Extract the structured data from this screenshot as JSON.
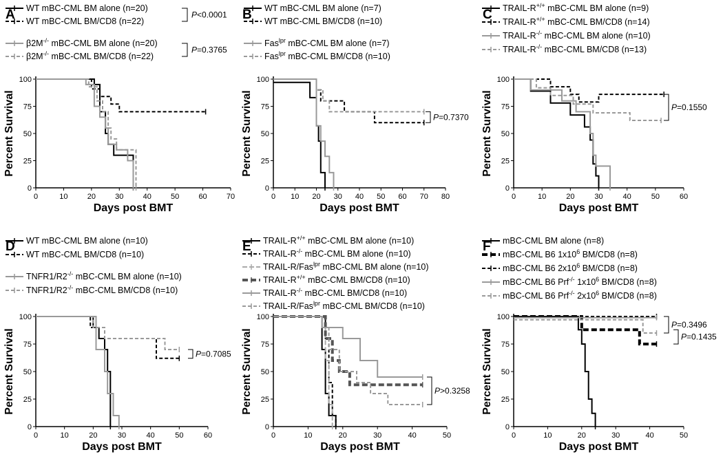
{
  "chart_data": [
    {
      "type": "line",
      "panel": "A",
      "xlabel": "Days post BMT",
      "ylabel": "Percent Survival",
      "xlim": [
        0,
        70
      ],
      "ylim": [
        0,
        100
      ],
      "xticks": [
        0,
        10,
        20,
        30,
        40,
        50,
        60,
        70
      ],
      "yticks": [
        0,
        25,
        50,
        75,
        100
      ],
      "series": [
        {
          "name": "WT mBC-CML BM alone (n=20)",
          "color": "#000000",
          "dash": "solid",
          "x": [
            0,
            21,
            23,
            25,
            26,
            28,
            35
          ],
          "y": [
            100,
            95,
            70,
            50,
            40,
            30,
            0
          ]
        },
        {
          "name": "WT mBC-CML BM/CD8 (n=22)",
          "color": "#000000",
          "dash": "dashed",
          "x": [
            0,
            20,
            23,
            27,
            30,
            61
          ],
          "y": [
            100,
            91,
            84,
            77,
            70,
            70
          ]
        },
        {
          "name": "β2M -/- mBC-CML BM alone (n=20)",
          "color": "#999999",
          "dash": "solid",
          "x": [
            0,
            18,
            21,
            23,
            25,
            26,
            29,
            33,
            35
          ],
          "y": [
            100,
            95,
            75,
            65,
            55,
            40,
            35,
            25,
            0
          ]
        },
        {
          "name": "β2M -/- mBC-CML BM/CD8 (n=22)",
          "color": "#999999",
          "dash": "dashed",
          "x": [
            0,
            19,
            22,
            24,
            26,
            27,
            29,
            36
          ],
          "y": [
            100,
            93,
            80,
            70,
            55,
            45,
            35,
            0
          ]
        }
      ],
      "pvalues": [
        {
          "label": "P",
          "value": "<0.0001"
        },
        {
          "label": "P",
          "value": "=0.3765"
        }
      ]
    },
    {
      "type": "line",
      "panel": "B",
      "xlabel": "Days post BMT",
      "ylabel": "Percent Survival",
      "xlim": [
        0,
        80
      ],
      "ylim": [
        0,
        100
      ],
      "xticks": [
        0,
        10,
        20,
        30,
        40,
        50,
        60,
        70,
        80
      ],
      "yticks": [
        0,
        25,
        50,
        75,
        100
      ],
      "series": [
        {
          "name": "WT mBC-CML BM alone (n=7)",
          "color": "#000000",
          "dash": "solid",
          "x": [
            0,
            17,
            20,
            21,
            22,
            24
          ],
          "y": [
            97,
            83,
            57,
            43,
            14,
            0
          ]
        },
        {
          "name": "WT mBC-CML BM/CD8 (n=10)",
          "color": "#000000",
          "dash": "dashed",
          "x": [
            0,
            20,
            22,
            29,
            33,
            47,
            70
          ],
          "y": [
            100,
            90,
            80,
            80,
            70,
            60,
            60
          ]
        },
        {
          "name": "Fas lpr mBC-CML BM alone (n=7)",
          "color": "#999999",
          "dash": "solid",
          "x": [
            0,
            20,
            22,
            24,
            26,
            28
          ],
          "y": [
            100,
            57,
            43,
            29,
            14,
            0
          ]
        },
        {
          "name": "Fas lpr mBC-CML BM/CD8 (n=10)",
          "color": "#999999",
          "dash": "dashed",
          "x": [
            0,
            20,
            23,
            26,
            70
          ],
          "y": [
            100,
            90,
            80,
            70,
            70
          ]
        }
      ],
      "pvalues": [
        {
          "label": "P",
          "value": "=0.7370"
        }
      ]
    },
    {
      "type": "line",
      "panel": "C",
      "xlabel": "Days post BMT",
      "ylabel": "Percent Survival",
      "xlim": [
        0,
        60
      ],
      "ylim": [
        0,
        100
      ],
      "xticks": [
        0,
        10,
        20,
        30,
        40,
        50,
        60
      ],
      "yticks": [
        0,
        25,
        50,
        75,
        100
      ],
      "series": [
        {
          "name": "TRAIL-R +/+ mBC-CML BM alone (n=9)",
          "color": "#000000",
          "dash": "solid",
          "x": [
            0,
            6,
            13,
            20,
            25,
            27,
            28,
            29,
            30
          ],
          "y": [
            100,
            89,
            78,
            67,
            56,
            44,
            22,
            11,
            0
          ]
        },
        {
          "name": "TRAIL-R +/+ mBC-CML BM/CD8 (n=14)",
          "color": "#000000",
          "dash": "dashed",
          "x": [
            0,
            13,
            20,
            23,
            30,
            53
          ],
          "y": [
            100,
            93,
            86,
            79,
            86,
            86
          ]
        },
        {
          "name": "TRAIL-R -/- mBC-CML BM alone (n=10)",
          "color": "#999999",
          "dash": "solid",
          "x": [
            0,
            6,
            15,
            17,
            22,
            27,
            28,
            29,
            31,
            34
          ],
          "y": [
            100,
            90,
            90,
            80,
            70,
            50,
            30,
            20,
            20,
            0
          ]
        },
        {
          "name": "TRAIL-R -/- mBC-CML BM/CD8 (n=13)",
          "color": "#999999",
          "dash": "dashed",
          "x": [
            0,
            8,
            13,
            21,
            28,
            35,
            41,
            52
          ],
          "y": [
            100,
            92,
            85,
            77,
            69,
            69,
            62,
            62
          ]
        }
      ],
      "pvalues": [
        {
          "label": "P",
          "value": "=0.1550"
        }
      ]
    },
    {
      "type": "line",
      "panel": "D",
      "xlabel": "Days post BMT",
      "ylabel": "Percent Survival",
      "xlim": [
        0,
        60
      ],
      "ylim": [
        0,
        100
      ],
      "xticks": [
        0,
        10,
        20,
        30,
        40,
        50,
        60
      ],
      "yticks": [
        0,
        25,
        50,
        75,
        100
      ],
      "series": [
        {
          "name": "WT mBC-CML BM alone (n=10)",
          "color": "#000000",
          "dash": "solid",
          "x": [
            0,
            20,
            22,
            24,
            25,
            26
          ],
          "y": [
            100,
            90,
            80,
            70,
            50,
            0
          ]
        },
        {
          "name": "WT mBC-CML BM/CD8 (n=10)",
          "color": "#000000",
          "dash": "dashed",
          "x": [
            0,
            19,
            21,
            24,
            42,
            50
          ],
          "y": [
            100,
            90,
            90,
            80,
            62,
            62
          ]
        },
        {
          "name": "TNFR1/R2 -/- mBC-CML BM alone (n=10)",
          "color": "#999999",
          "dash": "solid",
          "x": [
            0,
            21,
            24,
            25,
            27,
            29
          ],
          "y": [
            100,
            70,
            50,
            30,
            10,
            0
          ]
        },
        {
          "name": "TNFR1/R2 -/- mBC-CML BM/CD8 (n=10)",
          "color": "#999999",
          "dash": "dashed",
          "x": [
            0,
            20,
            24,
            45,
            50
          ],
          "y": [
            100,
            90,
            80,
            70,
            70
          ]
        }
      ],
      "pvalues": [
        {
          "label": "P",
          "value": "=0.7085"
        }
      ]
    },
    {
      "type": "line",
      "panel": "E",
      "xlabel": "Days post BMT",
      "ylabel": "Percent Survival",
      "xlim": [
        0,
        50
      ],
      "ylim": [
        0,
        100
      ],
      "xticks": [
        0,
        10,
        20,
        30,
        40,
        50
      ],
      "yticks": [
        0,
        25,
        50,
        75,
        100
      ],
      "series": [
        {
          "name": "TRAIL-R +/+ mBC-CML BM alone (n=10)",
          "color": "#000000",
          "dash": "solid",
          "x": [
            0,
            14,
            15,
            16,
            17,
            18
          ],
          "y": [
            100,
            70,
            30,
            10,
            10,
            0
          ]
        },
        {
          "name": "TRAIL-R -/- mBC-CML BM alone (n=10)",
          "color": "#000000",
          "dash": "dashed",
          "x": [
            0,
            15,
            16,
            17,
            18
          ],
          "y": [
            100,
            80,
            40,
            10,
            0
          ]
        },
        {
          "name": "TRAIL-R/Fas lpr mBC-CML BM alone (n=10)",
          "color": "#aaaaaa",
          "dash": "longdash",
          "x": [
            0,
            14,
            15,
            16,
            17
          ],
          "y": [
            100,
            90,
            60,
            20,
            0
          ]
        },
        {
          "name": "TRAIL-R +/+ mBC-CML BM/CD8 (n=10)",
          "color": "#555555",
          "dash": "thickdash",
          "x": [
            0,
            15,
            17,
            19,
            22,
            43
          ],
          "y": [
            100,
            80,
            60,
            50,
            38,
            38
          ]
        },
        {
          "name": "TRAIL-R -/- mBC-CML BM/CD8 (n=10)",
          "color": "#999999",
          "dash": "solid",
          "x": [
            0,
            14,
            20,
            25,
            30,
            43
          ],
          "y": [
            100,
            90,
            80,
            60,
            45,
            45
          ]
        },
        {
          "name": "TRAIL-R/Fas lpr mBC-CML BM/CD8 (n=10)",
          "color": "#999999",
          "dash": "dashed",
          "x": [
            0,
            14,
            16,
            19,
            24,
            28,
            33,
            43
          ],
          "y": [
            100,
            90,
            70,
            50,
            40,
            30,
            20,
            20
          ]
        }
      ],
      "pvalues": [
        {
          "label": "P",
          "value": ">0.3258"
        }
      ]
    },
    {
      "type": "line",
      "panel": "F",
      "xlabel": "Days post BMT",
      "ylabel": "Percent Survival",
      "xlim": [
        0,
        50
      ],
      "ylim": [
        0,
        100
      ],
      "xticks": [
        0,
        10,
        20,
        30,
        40,
        50
      ],
      "yticks": [
        0,
        25,
        50,
        75,
        100
      ],
      "series": [
        {
          "name": "mBC-CML BM alone (n=8)",
          "color": "#000000",
          "dash": "solid",
          "x": [
            0,
            19,
            20,
            21,
            22,
            23,
            24
          ],
          "y": [
            100,
            88,
            75,
            50,
            25,
            12,
            0
          ]
        },
        {
          "name": "mBC-CML B6 1x10^6 BM/CD8 (n=8)",
          "color": "#000000",
          "dash": "thickdash",
          "x": [
            0,
            20,
            37,
            42
          ],
          "y": [
            100,
            88,
            75,
            75
          ]
        },
        {
          "name": "mBC-CML B6 2x10^6 BM/CD8 (n=8)",
          "color": "#000000",
          "dash": "dashed",
          "x": [
            0,
            42
          ],
          "y": [
            100,
            100
          ]
        },
        {
          "name": "mBC-CML B6 Prf -/- 1x10^6 BM/CD8 (n=8)",
          "color": "#999999",
          "dash": "solid",
          "x": [
            0,
            42
          ],
          "y": [
            99,
            99
          ]
        },
        {
          "name": "mBC-CML B6 Prf -/- 2x10^6 BM/CD8 (n=8)",
          "color": "#999999",
          "dash": "dashed",
          "x": [
            0,
            38,
            42
          ],
          "y": [
            97,
            85,
            85
          ]
        }
      ],
      "pvalues": [
        {
          "label": "P",
          "value": "=0.3496"
        },
        {
          "label": "P",
          "value": "=0.1435"
        }
      ]
    }
  ]
}
